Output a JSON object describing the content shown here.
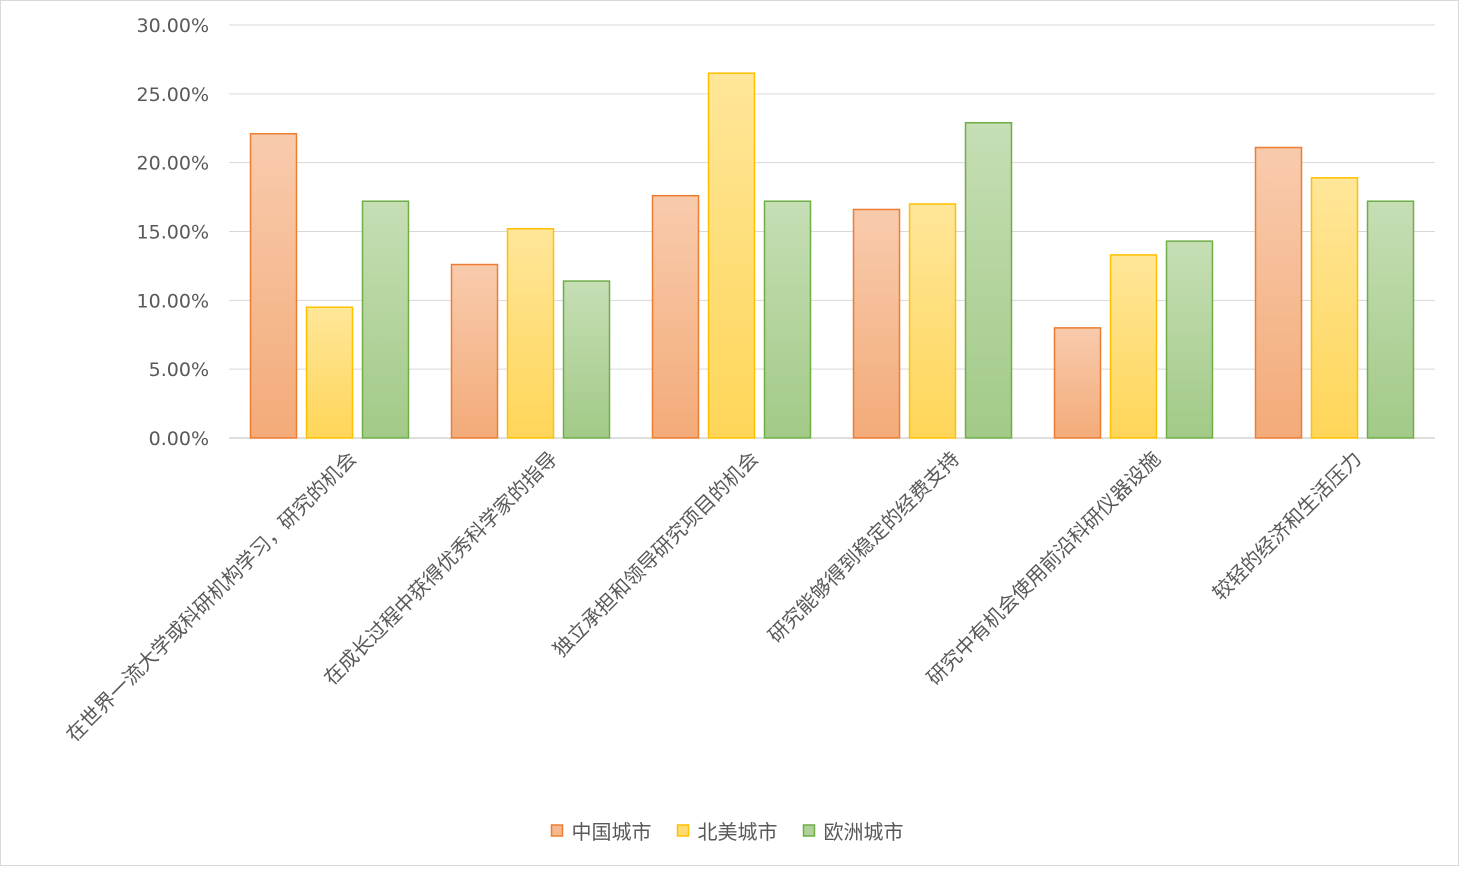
{
  "chart_data": {
    "type": "bar",
    "title": "",
    "xlabel": "",
    "ylabel": "",
    "categories": [
      "在世界一流大学或科研机构学习，研究的机会",
      "在成长过程中获得优秀科学家的指导",
      "独立承担和领导研究项目的机会",
      "研究能够得到稳定的经费支持",
      "研究中有机会使用前沿科研仪器设施",
      "较轻的经济和生活压力"
    ],
    "series": [
      {
        "name": "中国城市",
        "values": [
          0.221,
          0.126,
          0.176,
          0.166,
          0.08,
          0.211
        ],
        "color": "#ED7D31"
      },
      {
        "name": "北美城市",
        "values": [
          0.095,
          0.152,
          0.265,
          0.17,
          0.133,
          0.189
        ],
        "color": "#FFC000"
      },
      {
        "name": "欧洲城市",
        "values": [
          0.172,
          0.114,
          0.172,
          0.229,
          0.143,
          0.172
        ],
        "color": "#70AD47"
      }
    ],
    "ylim": [
      0,
      0.3
    ],
    "yticks": [
      "0.00%",
      "5.00%",
      "10.00%",
      "15.00%",
      "20.00%",
      "25.00%",
      "30.00%"
    ],
    "grid": true,
    "legend": "bottom"
  }
}
